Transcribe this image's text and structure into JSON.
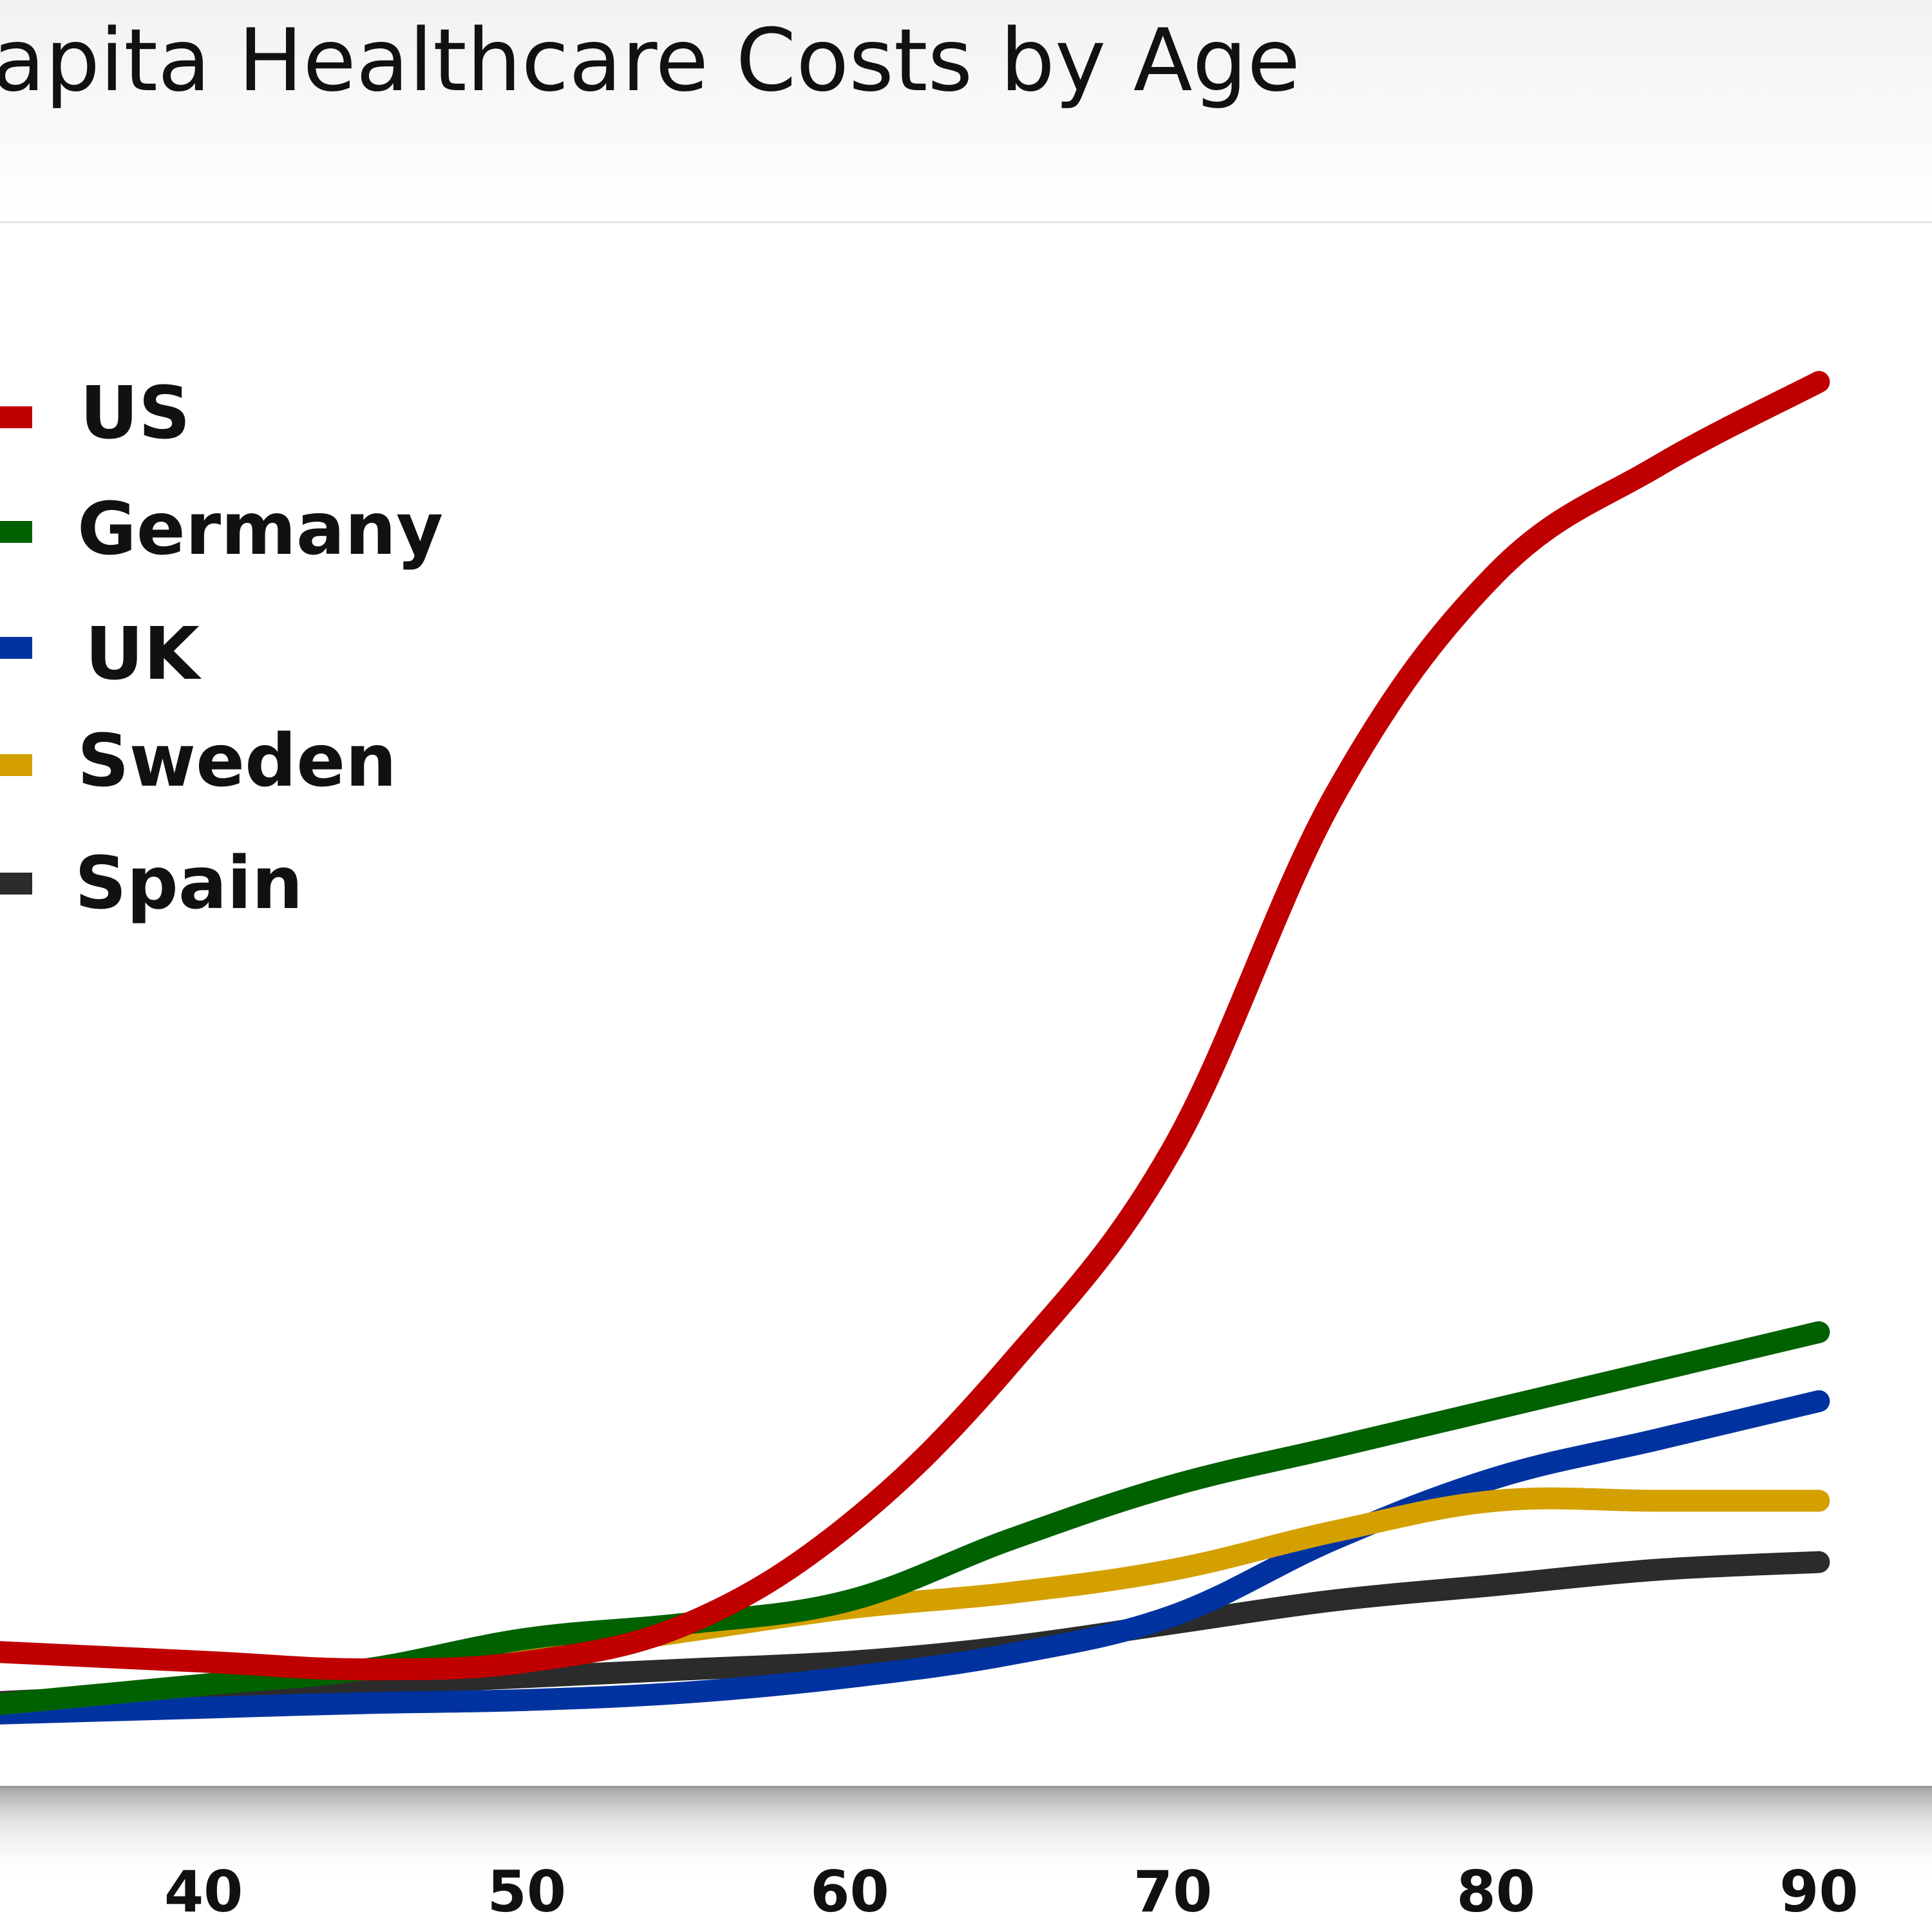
{
  "chart_data": {
    "type": "line",
    "title": "Per Capita Healthcare Costs by Age",
    "title_visible": "apita Healthcare Costs by Age",
    "xlabel": "",
    "ylabel": "",
    "x_ticks": [
      40,
      50,
      60,
      70,
      80,
      90
    ],
    "x": [
      40,
      45,
      50,
      55,
      60,
      65,
      70,
      75,
      80,
      85,
      90
    ],
    "xlim": [
      32.5,
      93.5
    ],
    "ylim": [
      0,
      100
    ],
    "grid": false,
    "legend_position": "top-left",
    "series": [
      {
        "name": "US",
        "color": "#c00000",
        "values": [
          6.5,
          6.0,
          6.5,
          9.0,
          15.5,
          26.0,
          40.0,
          63.0,
          77.5,
          84.5,
          90.0
        ]
      },
      {
        "name": "Germany",
        "color": "#006100",
        "values": [
          5.0,
          6.0,
          8.0,
          9.0,
          10.5,
          14.5,
          18.0,
          20.5,
          23.0,
          25.5,
          28.0
        ]
      },
      {
        "name": "UK",
        "color": "#0033a0",
        "values": [
          3.5,
          3.8,
          4.0,
          4.5,
          5.5,
          7.0,
          9.5,
          14.5,
          18.5,
          21.0,
          23.5
        ]
      },
      {
        "name": "Sweden",
        "color": "#d4a000",
        "values": [
          5.0,
          6.0,
          7.0,
          8.5,
          10.0,
          11.0,
          12.5,
          15.0,
          17.0,
          17.0,
          17.0
        ]
      },
      {
        "name": "Spain",
        "color": "#2b2b2b",
        "values": [
          4.5,
          5.0,
          5.5,
          6.0,
          6.5,
          7.5,
          9.0,
          10.5,
          11.5,
          12.5,
          13.0
        ]
      }
    ]
  }
}
